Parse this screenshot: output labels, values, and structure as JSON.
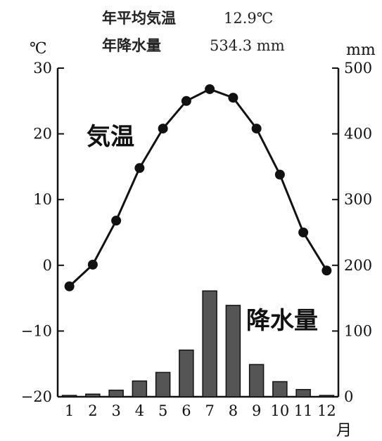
{
  "header": {
    "temp_label": "年平均気温",
    "temp_value": "12.9℃",
    "precip_label": "年降水量",
    "precip_value": "534.3 mm"
  },
  "chart_data": {
    "type": "bar+line",
    "categories": [
      "1",
      "2",
      "3",
      "4",
      "5",
      "6",
      "7",
      "8",
      "9",
      "10",
      "11",
      "12"
    ],
    "x_unit": "月",
    "left_axis": {
      "unit": "℃",
      "ylim": [
        -20,
        30
      ],
      "ticks": [
        "30",
        "20",
        "10",
        "0",
        "−10",
        "−20"
      ]
    },
    "right_axis": {
      "unit": "mm",
      "ylim": [
        0,
        500
      ],
      "ticks": [
        "500",
        "400",
        "300",
        "200",
        "100",
        "0"
      ]
    },
    "series": [
      {
        "name": "気温",
        "kind": "line",
        "axis": "left",
        "values": [
          -3.2,
          0.1,
          6.8,
          14.8,
          20.8,
          25.0,
          26.8,
          25.5,
          20.8,
          13.8,
          5.0,
          -0.8
        ]
      },
      {
        "name": "降水量",
        "kind": "bar",
        "axis": "right",
        "values": [
          2,
          4,
          10,
          24,
          37,
          71,
          161,
          139,
          49,
          23,
          11,
          2
        ]
      }
    ],
    "colors": {
      "bar": "#555555",
      "line": "#111111",
      "axis": "#111111"
    }
  }
}
